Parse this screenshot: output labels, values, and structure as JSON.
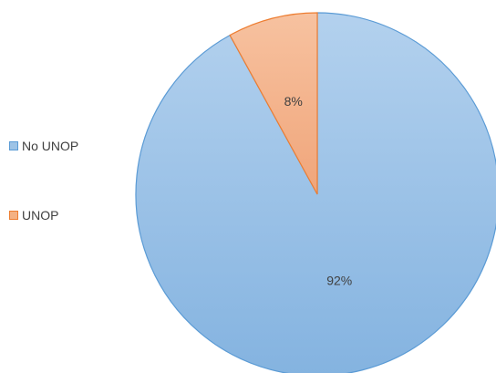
{
  "chart_data": {
    "type": "pie",
    "title": "",
    "legend_position": "left",
    "slices": [
      {
        "name": "No UNOP",
        "value": 92,
        "label": "92%",
        "fill": "#9dc3e6",
        "stroke": "#5b9bd5"
      },
      {
        "name": "UNOP",
        "value": 8,
        "label": "8%",
        "fill": "#f4b183",
        "stroke": "#ed7d31"
      }
    ]
  }
}
